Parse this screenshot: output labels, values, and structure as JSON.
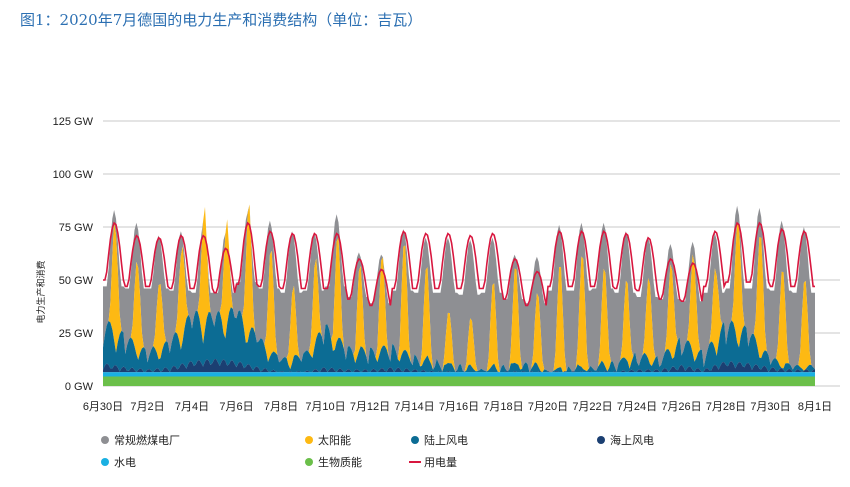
{
  "title": "图1：2020年7月德国的电力生产和消费结构（单位：吉瓦）",
  "chart_data": {
    "type": "area",
    "ylabel": "电力生产和消费",
    "y_ticks": [
      "0 GW",
      "25 GW",
      "50 GW",
      "75 GW",
      "100 GW",
      "125 GW"
    ],
    "ylim": [
      0,
      125
    ],
    "x_ticks": [
      "6月30日",
      "7月2日",
      "7月4日",
      "7月6日",
      "7月8日",
      "7月10日",
      "7月12日",
      "7月14日",
      "7月16日",
      "7月18日",
      "7月20日",
      "7月22日",
      "7月24日",
      "7月26日",
      "7月28日",
      "7月30日",
      "8月1日"
    ],
    "x_days": [
      "2020-06-30",
      "2020-07-01",
      "2020-07-02",
      "2020-07-03",
      "2020-07-04",
      "2020-07-05",
      "2020-07-06",
      "2020-07-07",
      "2020-07-08",
      "2020-07-09",
      "2020-07-10",
      "2020-07-11",
      "2020-07-12",
      "2020-07-13",
      "2020-07-14",
      "2020-07-15",
      "2020-07-16",
      "2020-07-17",
      "2020-07-18",
      "2020-07-19",
      "2020-07-20",
      "2020-07-21",
      "2020-07-22",
      "2020-07-23",
      "2020-07-24",
      "2020-07-25",
      "2020-07-26",
      "2020-07-27",
      "2020-07-28",
      "2020-07-29",
      "2020-07-30",
      "2020-07-31"
    ],
    "grid": true,
    "legend_position": "bottom",
    "series": [
      {
        "name": "常规燃煤电厂",
        "color": "#8e8f93",
        "kind": "area",
        "daily_peak_total": [
          83,
          77,
          71,
          73,
          75,
          72,
          82,
          78,
          73,
          72,
          81,
          63,
          62,
          74,
          70,
          70,
          69,
          70,
          62,
          61,
          76,
          77,
          77,
          73,
          70,
          67,
          68,
          72,
          85,
          84,
          78,
          75
        ],
        "daily_min_total": [
          47,
          46,
          46,
          45,
          44,
          44,
          49,
          46,
          44,
          45,
          47,
          42,
          39,
          45,
          44,
          44,
          43,
          44,
          41,
          39,
          45,
          45,
          46,
          44,
          42,
          41,
          40,
          44,
          46,
          46,
          45,
          44
        ]
      },
      {
        "name": "太阳能",
        "color": "#fdb913",
        "kind": "area",
        "daily_peak": [
          59,
          46,
          37,
          47,
          61,
          52,
          64,
          51,
          35,
          40,
          50,
          40,
          44,
          52,
          44,
          25,
          23,
          40,
          47,
          35,
          50,
          55,
          47,
          39,
          40,
          44,
          49,
          40,
          60,
          60,
          48,
          44
        ]
      },
      {
        "name": "陆上风电",
        "color": "#0c6c94",
        "kind": "area",
        "daily_max": [
          33,
          25,
          17,
          22,
          36,
          35,
          38,
          24,
          13,
          15,
          30,
          19,
          18,
          20,
          15,
          12,
          10,
          8,
          10,
          12,
          8,
          9,
          10,
          12,
          16,
          14,
          24,
          16,
          32,
          28,
          14,
          10
        ]
      },
      {
        "name": "海上风电",
        "color": "#1b3f72",
        "kind": "area",
        "daily_max": [
          11,
          9,
          8,
          9,
          12,
          13,
          12,
          9,
          7,
          7,
          9,
          8,
          8,
          9,
          8,
          7,
          7,
          6,
          7,
          7,
          7,
          7,
          7,
          7,
          8,
          8,
          10,
          8,
          12,
          11,
          9,
          8
        ]
      },
      {
        "name": "水电",
        "color": "#1ab0e2",
        "kind": "area",
        "approx_value": 2
      },
      {
        "name": "生物质能",
        "color": "#6bbf4a",
        "kind": "area",
        "approx_value": 4.5
      },
      {
        "name": "用电量",
        "color": "#d8173f",
        "kind": "line",
        "daily_peak": [
          77,
          71,
          70,
          71,
          71,
          65,
          77,
          73,
          72,
          72,
          72,
          60,
          55,
          73,
          72,
          72,
          71,
          72,
          60,
          54,
          73,
          73,
          73,
          72,
          70,
          60,
          58,
          73,
          77,
          77,
          74,
          73
        ],
        "daily_min": [
          50,
          47,
          47,
          46,
          46,
          44,
          48,
          47,
          46,
          46,
          46,
          41,
          38,
          46,
          46,
          46,
          46,
          46,
          41,
          38,
          47,
          47,
          47,
          46,
          45,
          41,
          40,
          47,
          49,
          49,
          47,
          47
        ]
      }
    ]
  }
}
